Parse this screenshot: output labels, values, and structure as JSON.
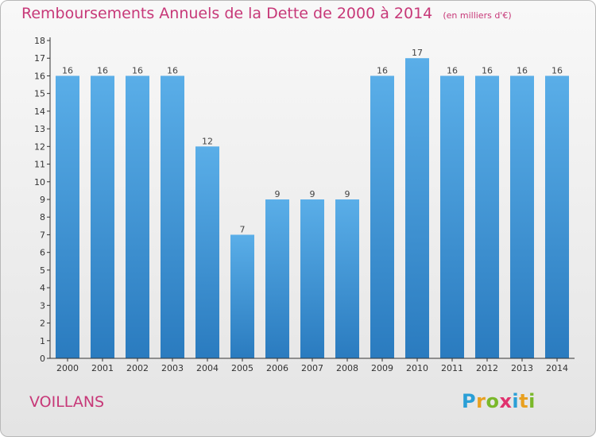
{
  "header": {
    "title": "Remboursements Annuels de la Dette de 2000 à 2014",
    "unit": "(en milliers d'€)"
  },
  "footer": {
    "commune": "VOILLANS",
    "logo": {
      "text": "Proxiti",
      "letter_colors": [
        "#2a9fd6",
        "#e8a020",
        "#7ab82a",
        "#e0326e",
        "#2a9fd6",
        "#e8a020",
        "#7ab82a"
      ]
    }
  },
  "colors": {
    "title": "#c73878",
    "bar_light": "#5aaee8",
    "bar_dark": "#2a7bbf",
    "axis": "#333333"
  },
  "chart_data": {
    "type": "bar",
    "title": "Remboursements Annuels de la Dette de 2000 à 2014",
    "subtitle": "(en milliers d'€)",
    "xlabel": "",
    "ylabel": "",
    "categories": [
      "2000",
      "2001",
      "2002",
      "2003",
      "2004",
      "2005",
      "2006",
      "2007",
      "2008",
      "2009",
      "2010",
      "2011",
      "2012",
      "2013",
      "2014"
    ],
    "values": [
      16,
      16,
      16,
      16,
      12,
      7,
      9,
      9,
      9,
      16,
      17,
      16,
      16,
      16,
      16
    ],
    "ylim": [
      0,
      18
    ],
    "yticks": [
      0,
      1,
      2,
      3,
      4,
      5,
      6,
      7,
      8,
      9,
      10,
      11,
      12,
      13,
      14,
      15,
      16,
      17,
      18
    ],
    "grid": false,
    "data_labels": true
  }
}
